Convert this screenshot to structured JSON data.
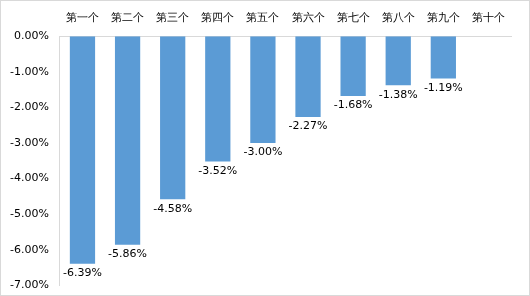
{
  "chart_data": {
    "type": "bar",
    "categories": [
      "第一个",
      "第二个",
      "第三个",
      "第四个",
      "第五个",
      "第六个",
      "第七个",
      "第八个",
      "第九个",
      "第十个"
    ],
    "values": [
      -6.39,
      -5.86,
      -4.58,
      -3.52,
      -3.0,
      -2.27,
      -1.68,
      -1.38,
      -1.19,
      null
    ],
    "value_labels": [
      "-6.39%",
      "-5.86%",
      "-4.58%",
      "-3.52%",
      "-3.00%",
      "-2.27%",
      "-1.68%",
      "-1.38%",
      "-1.19%",
      null
    ],
    "data_labels": true,
    "color": "#5b9bd5",
    "ylim": [
      -7,
      0
    ],
    "yticks": [
      {
        "value": 0,
        "label": "0.00%"
      },
      {
        "value": -1,
        "label": "-1.00%"
      },
      {
        "value": -2,
        "label": "-2.00%"
      },
      {
        "value": -3,
        "label": "-3.00%"
      },
      {
        "value": -4,
        "label": "-4.00%"
      },
      {
        "value": -5,
        "label": "-5.00%"
      },
      {
        "value": -6,
        "label": "-6.00%"
      },
      {
        "value": -7,
        "label": "-7.00%"
      }
    ],
    "grid": false
  }
}
